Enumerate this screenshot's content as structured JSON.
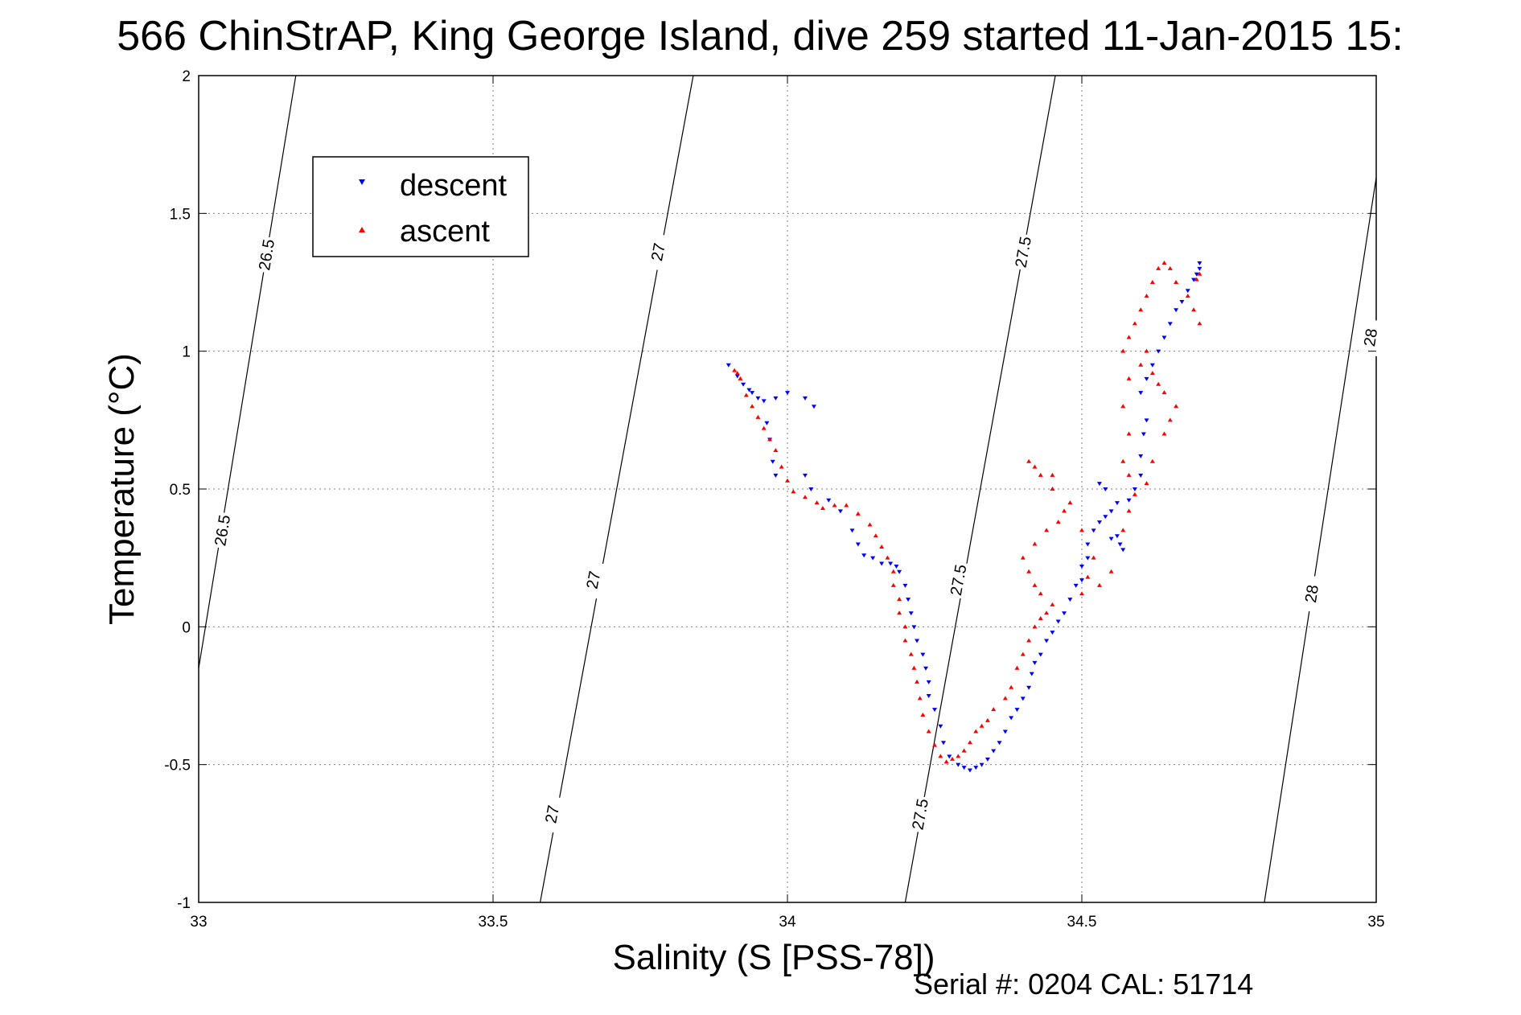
{
  "title": "566 ChinStrAP, King George Island, dive 259 started 11-Jan-2015 15:",
  "footer": "Serial #: 0204  CAL: 51714",
  "chart_data": {
    "type": "scatter",
    "title": "566 ChinStrAP, King George Island, dive 259 started 11-Jan-2015 15:",
    "xlabel": "Salinity (S [PSS-78])",
    "ylabel": "Temperature (°C)",
    "xlim": [
      33,
      35
    ],
    "ylim": [
      -1,
      2
    ],
    "xticks": [
      33,
      33.5,
      34,
      34.5,
      35
    ],
    "xtick_labels": [
      "33",
      "33.5",
      "34",
      "34.5",
      "35"
    ],
    "yticks": [
      -1,
      -0.5,
      0,
      0.5,
      1,
      1.5,
      2
    ],
    "ytick_labels": [
      "-1",
      "-0.5",
      "0",
      "0.5",
      "1",
      "1.5",
      "2"
    ],
    "grid": true,
    "legend": {
      "position": "top-left",
      "entries": [
        {
          "label": "descent",
          "marker": "down-triangle",
          "color": "#0000ff"
        },
        {
          "label": "ascent",
          "marker": "up-triangle",
          "color": "#ff0000"
        }
      ]
    },
    "density_contours": [
      {
        "sigma": "26.5",
        "points": [
          [
            33.0,
            -0.15
          ],
          [
            33.165,
            2.0
          ]
        ],
        "labels": [
          [
            33.04,
            0.35
          ],
          [
            33.115,
            1.35
          ]
        ]
      },
      {
        "sigma": "27",
        "points": [
          [
            33.58,
            -1.0
          ],
          [
            33.84,
            2.0
          ]
        ],
        "labels": [
          [
            33.6,
            -0.68
          ],
          [
            33.67,
            0.17
          ],
          [
            33.78,
            1.36
          ]
        ]
      },
      {
        "sigma": "27.5",
        "points": [
          [
            34.2,
            -1.0
          ],
          [
            34.455,
            2.0
          ]
        ],
        "labels": [
          [
            34.225,
            -0.68
          ],
          [
            34.29,
            0.17
          ],
          [
            34.4,
            1.36
          ]
        ]
      },
      {
        "sigma": "28",
        "points": [
          [
            34.81,
            -1.0
          ],
          [
            35.0,
            1.63
          ]
        ],
        "labels": [
          [
            34.89,
            0.12
          ],
          [
            34.99,
            1.05
          ]
        ]
      }
    ],
    "series": [
      {
        "name": "descent",
        "color": "#0000ff",
        "marker": "down-triangle",
        "points": [
          [
            33.9,
            0.95
          ],
          [
            33.915,
            0.91
          ],
          [
            33.925,
            0.88
          ],
          [
            33.935,
            0.86
          ],
          [
            33.94,
            0.85
          ],
          [
            33.95,
            0.83
          ],
          [
            33.96,
            0.82
          ],
          [
            33.98,
            0.83
          ],
          [
            34.0,
            0.85
          ],
          [
            34.03,
            0.83
          ],
          [
            34.045,
            0.8
          ],
          [
            33.965,
            0.74
          ],
          [
            33.97,
            0.68
          ],
          [
            33.975,
            0.6
          ],
          [
            33.98,
            0.55
          ],
          [
            34.03,
            0.55
          ],
          [
            34.04,
            0.5
          ],
          [
            34.07,
            0.46
          ],
          [
            34.09,
            0.42
          ],
          [
            34.11,
            0.35
          ],
          [
            34.12,
            0.3
          ],
          [
            34.13,
            0.26
          ],
          [
            34.145,
            0.25
          ],
          [
            34.16,
            0.23
          ],
          [
            34.175,
            0.23
          ],
          [
            34.185,
            0.22
          ],
          [
            34.19,
            0.2
          ],
          [
            34.2,
            0.15
          ],
          [
            34.205,
            0.1
          ],
          [
            34.21,
            0.05
          ],
          [
            34.215,
            0.0
          ],
          [
            34.22,
            -0.05
          ],
          [
            34.23,
            -0.1
          ],
          [
            34.235,
            -0.15
          ],
          [
            34.24,
            -0.2
          ],
          [
            34.24,
            -0.25
          ],
          [
            34.25,
            -0.3
          ],
          [
            34.26,
            -0.36
          ],
          [
            34.265,
            -0.42
          ],
          [
            34.275,
            -0.47
          ],
          [
            34.29,
            -0.5
          ],
          [
            34.3,
            -0.51
          ],
          [
            34.31,
            -0.52
          ],
          [
            34.32,
            -0.51
          ],
          [
            34.33,
            -0.5
          ],
          [
            34.34,
            -0.48
          ],
          [
            34.35,
            -0.45
          ],
          [
            34.36,
            -0.42
          ],
          [
            34.37,
            -0.38
          ],
          [
            34.38,
            -0.33
          ],
          [
            34.39,
            -0.3
          ],
          [
            34.4,
            -0.26
          ],
          [
            34.41,
            -0.22
          ],
          [
            34.415,
            -0.17
          ],
          [
            34.42,
            -0.13
          ],
          [
            34.43,
            -0.1
          ],
          [
            34.44,
            -0.05
          ],
          [
            34.45,
            -0.02
          ],
          [
            34.46,
            0.02
          ],
          [
            34.47,
            0.05
          ],
          [
            34.48,
            0.1
          ],
          [
            34.49,
            0.15
          ],
          [
            34.5,
            0.17
          ],
          [
            34.5,
            0.22
          ],
          [
            34.51,
            0.25
          ],
          [
            34.51,
            0.3
          ],
          [
            34.52,
            0.35
          ],
          [
            34.53,
            0.38
          ],
          [
            34.54,
            0.4
          ],
          [
            34.55,
            0.42
          ],
          [
            34.56,
            0.33
          ],
          [
            34.565,
            0.3
          ],
          [
            34.57,
            0.28
          ],
          [
            34.55,
            0.32
          ],
          [
            34.53,
            0.52
          ],
          [
            34.54,
            0.5
          ],
          [
            34.56,
            0.45
          ],
          [
            34.58,
            0.46
          ],
          [
            34.59,
            0.5
          ],
          [
            34.6,
            0.55
          ],
          [
            34.6,
            0.62
          ],
          [
            34.605,
            0.7
          ],
          [
            34.61,
            0.75
          ],
          [
            34.6,
            0.85
          ],
          [
            34.61,
            0.9
          ],
          [
            34.62,
            0.95
          ],
          [
            34.63,
            1.0
          ],
          [
            34.64,
            1.05
          ],
          [
            34.65,
            1.1
          ],
          [
            34.66,
            1.15
          ],
          [
            34.67,
            1.18
          ],
          [
            34.68,
            1.22
          ],
          [
            34.69,
            1.26
          ],
          [
            34.7,
            1.3
          ],
          [
            34.7,
            1.32
          ],
          [
            34.695,
            1.28
          ]
        ]
      },
      {
        "name": "ascent",
        "color": "#ff0000",
        "marker": "up-triangle",
        "points": [
          [
            33.91,
            0.93
          ],
          [
            33.915,
            0.92
          ],
          [
            33.92,
            0.9
          ],
          [
            33.93,
            0.84
          ],
          [
            33.94,
            0.8
          ],
          [
            33.95,
            0.76
          ],
          [
            33.96,
            0.72
          ],
          [
            33.97,
            0.68
          ],
          [
            33.98,
            0.64
          ],
          [
            33.99,
            0.58
          ],
          [
            34.0,
            0.53
          ],
          [
            34.01,
            0.49
          ],
          [
            34.03,
            0.47
          ],
          [
            34.05,
            0.45
          ],
          [
            34.06,
            0.43
          ],
          [
            34.08,
            0.44
          ],
          [
            34.1,
            0.44
          ],
          [
            34.12,
            0.41
          ],
          [
            34.14,
            0.37
          ],
          [
            34.15,
            0.33
          ],
          [
            34.16,
            0.29
          ],
          [
            34.17,
            0.25
          ],
          [
            34.18,
            0.2
          ],
          [
            34.18,
            0.15
          ],
          [
            34.19,
            0.1
          ],
          [
            34.19,
            0.05
          ],
          [
            34.2,
            0.0
          ],
          [
            34.2,
            -0.05
          ],
          [
            34.21,
            -0.1
          ],
          [
            34.215,
            -0.15
          ],
          [
            34.22,
            -0.2
          ],
          [
            34.225,
            -0.26
          ],
          [
            34.23,
            -0.32
          ],
          [
            34.24,
            -0.38
          ],
          [
            34.25,
            -0.43
          ],
          [
            34.26,
            -0.47
          ],
          [
            34.27,
            -0.49
          ],
          [
            34.28,
            -0.48
          ],
          [
            34.29,
            -0.47
          ],
          [
            34.3,
            -0.45
          ],
          [
            34.31,
            -0.42
          ],
          [
            34.32,
            -0.38
          ],
          [
            34.33,
            -0.36
          ],
          [
            34.34,
            -0.34
          ],
          [
            34.35,
            -0.3
          ],
          [
            34.37,
            -0.26
          ],
          [
            34.38,
            -0.22
          ],
          [
            34.39,
            -0.15
          ],
          [
            34.4,
            -0.1
          ],
          [
            34.41,
            -0.05
          ],
          [
            34.42,
            0.0
          ],
          [
            34.43,
            0.03
          ],
          [
            34.44,
            0.05
          ],
          [
            34.45,
            0.08
          ],
          [
            34.43,
            0.12
          ],
          [
            34.42,
            0.15
          ],
          [
            34.41,
            0.2
          ],
          [
            34.4,
            0.25
          ],
          [
            34.42,
            0.3
          ],
          [
            34.44,
            0.35
          ],
          [
            34.46,
            0.38
          ],
          [
            34.47,
            0.42
          ],
          [
            34.45,
            0.5
          ],
          [
            34.43,
            0.55
          ],
          [
            34.42,
            0.58
          ],
          [
            34.41,
            0.6
          ],
          [
            34.45,
            0.55
          ],
          [
            34.48,
            0.45
          ],
          [
            34.5,
            0.35
          ],
          [
            34.52,
            0.25
          ],
          [
            34.51,
            0.18
          ],
          [
            34.5,
            0.12
          ],
          [
            34.53,
            0.15
          ],
          [
            34.55,
            0.2
          ],
          [
            34.57,
            0.35
          ],
          [
            34.58,
            0.42
          ],
          [
            34.59,
            0.48
          ],
          [
            34.58,
            0.55
          ],
          [
            34.57,
            0.6
          ],
          [
            34.58,
            0.7
          ],
          [
            34.57,
            0.8
          ],
          [
            34.58,
            0.9
          ],
          [
            34.57,
            1.0
          ],
          [
            34.58,
            1.05
          ],
          [
            34.59,
            1.1
          ],
          [
            34.6,
            1.15
          ],
          [
            34.61,
            1.2
          ],
          [
            34.62,
            1.25
          ],
          [
            34.63,
            1.3
          ],
          [
            34.64,
            1.32
          ],
          [
            34.65,
            1.3
          ],
          [
            34.66,
            1.25
          ],
          [
            34.68,
            1.2
          ],
          [
            34.69,
            1.15
          ],
          [
            34.7,
            1.1
          ],
          [
            34.7,
            1.28
          ],
          [
            34.695,
            1.26
          ],
          [
            34.6,
            0.95
          ],
          [
            34.61,
            1.0
          ],
          [
            34.62,
            0.92
          ],
          [
            34.63,
            0.88
          ],
          [
            34.64,
            0.85
          ],
          [
            34.66,
            0.8
          ],
          [
            34.65,
            0.75
          ],
          [
            34.64,
            0.7
          ],
          [
            34.62,
            0.6
          ],
          [
            34.61,
            0.52
          ]
        ]
      }
    ]
  }
}
